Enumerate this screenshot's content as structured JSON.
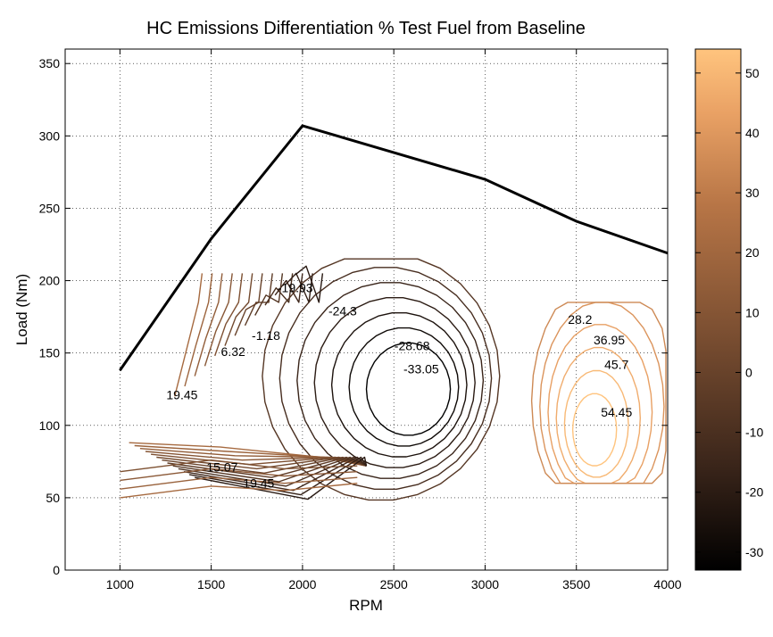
{
  "chart_data": {
    "type": "contour",
    "title": "HC  Emissions Differentiation % Test Fuel from Baseline",
    "xlabel": "RPM",
    "ylabel": "Load (Nm)",
    "xlim": [
      700,
      4000
    ],
    "ylim": [
      0,
      360
    ],
    "xticks": [
      1000,
      1500,
      2000,
      2500,
      3000,
      3500,
      4000
    ],
    "yticks": [
      0,
      50,
      100,
      150,
      200,
      250,
      300,
      350
    ],
    "grid": true,
    "colorbar": {
      "colormap": "copper",
      "range": [
        -33,
        54
      ],
      "ticks": [
        -30,
        -20,
        -10,
        0,
        10,
        20,
        30,
        40,
        50
      ],
      "colors": [
        "#000000",
        "#3a251a",
        "#7a4e31",
        "#b77546",
        "#eaa265",
        "#ffc47e"
      ]
    },
    "max_torque_curve": {
      "x": [
        1000,
        1500,
        2000,
        3000,
        3500,
        4000
      ],
      "y": [
        138,
        229,
        307,
        270,
        241,
        219
      ]
    },
    "contour_labels": [
      {
        "text": "19.45",
        "x": 1340,
        "y": 118
      },
      {
        "text": "6.32",
        "x": 1620,
        "y": 148
      },
      {
        "text": "-1.18",
        "x": 1800,
        "y": 159
      },
      {
        "text": "-19.93",
        "x": 1960,
        "y": 192
      },
      {
        "text": "-24.3",
        "x": 2220,
        "y": 176
      },
      {
        "text": "-28.68",
        "x": 2600,
        "y": 152
      },
      {
        "text": "-33.05",
        "x": 2650,
        "y": 136
      },
      {
        "text": "15.07",
        "x": 1560,
        "y": 68
      },
      {
        "text": "19.45",
        "x": 1760,
        "y": 57
      },
      {
        "text": "28.2",
        "x": 3520,
        "y": 170
      },
      {
        "text": "36.95",
        "x": 3680,
        "y": 156
      },
      {
        "text": "45.7",
        "x": 3720,
        "y": 139
      },
      {
        "text": "54.45",
        "x": 3720,
        "y": 106
      }
    ]
  }
}
